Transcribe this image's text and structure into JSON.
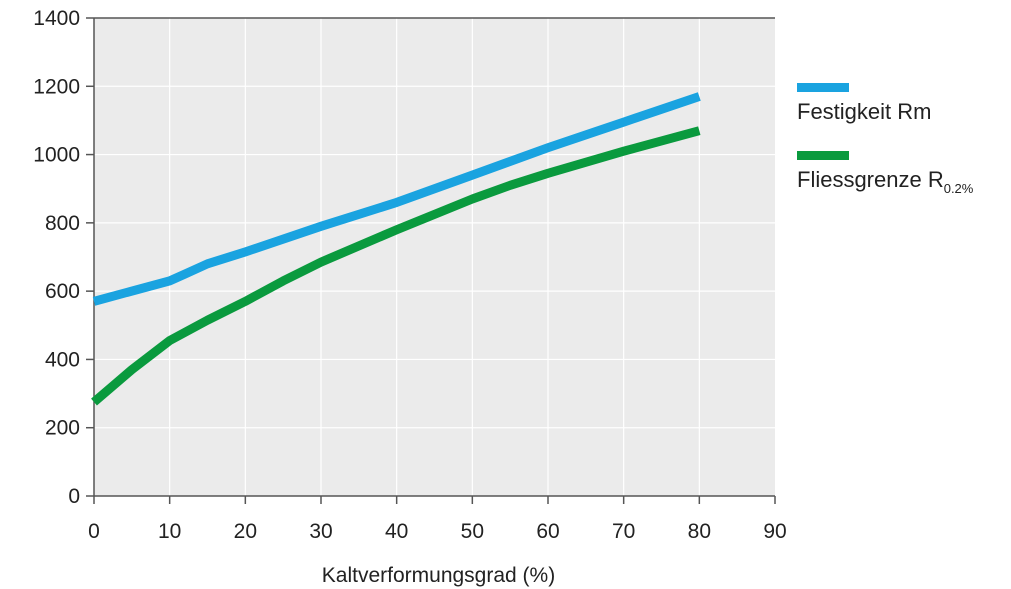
{
  "chart_data": {
    "type": "line",
    "title": "",
    "xlabel": "Kaltverformungsgrad (%)",
    "ylabel": "",
    "xlim": [
      0,
      90
    ],
    "ylim": [
      0,
      1400
    ],
    "x_ticks": [
      "0",
      "10",
      "20",
      "30",
      "40",
      "50",
      "60",
      "70",
      "80",
      "90"
    ],
    "y_ticks": [
      "0",
      "200",
      "400",
      "600",
      "800",
      "1000",
      "1200",
      "1400"
    ],
    "grid": true,
    "legend_position": "right",
    "series": [
      {
        "name": "Festigkeit Rm",
        "color": "#1aa3e0",
        "points": [
          [
            0,
            570
          ],
          [
            5,
            600
          ],
          [
            10,
            630
          ],
          [
            12,
            650
          ],
          [
            15,
            680
          ],
          [
            20,
            715
          ],
          [
            30,
            790
          ],
          [
            40,
            860
          ],
          [
            50,
            940
          ],
          [
            60,
            1020
          ],
          [
            70,
            1095
          ],
          [
            80,
            1170
          ]
        ]
      },
      {
        "name": "Fliessgrenze R",
        "name_subscript": "0.2%",
        "color": "#0a9a3e",
        "points": [
          [
            0,
            275
          ],
          [
            5,
            370
          ],
          [
            10,
            455
          ],
          [
            15,
            515
          ],
          [
            20,
            570
          ],
          [
            25,
            630
          ],
          [
            30,
            685
          ],
          [
            40,
            780
          ],
          [
            50,
            870
          ],
          [
            55,
            910
          ],
          [
            60,
            945
          ],
          [
            70,
            1010
          ],
          [
            80,
            1070
          ]
        ]
      }
    ],
    "colors": {
      "plot_background": "#ebebeb",
      "gridline": "#ffffff",
      "axis": "#555555"
    }
  }
}
